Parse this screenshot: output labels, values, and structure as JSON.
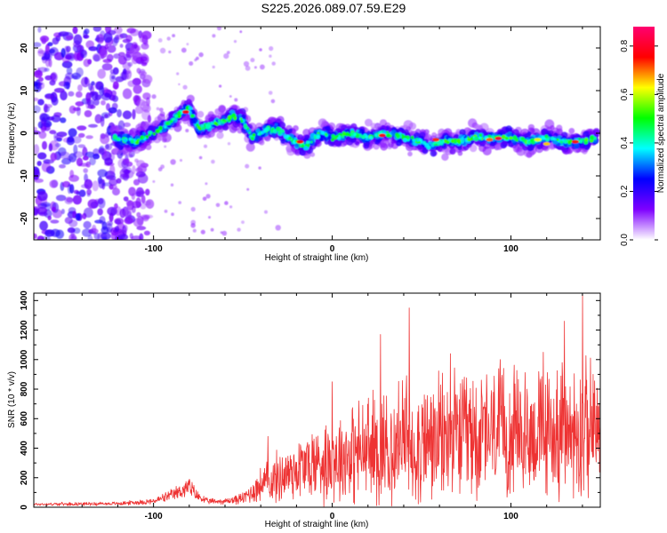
{
  "chart_data": [
    {
      "type": "heatmap",
      "title": "S225.2026.089.07.59.E29",
      "xlabel": "Height of straight line (km)",
      "ylabel": "Frequency (Hz)",
      "xlim": [
        -167,
        150
      ],
      "ylim": [
        -25,
        25
      ],
      "xticks": [
        -100,
        0,
        100
      ],
      "xtick_labels": [
        "-100",
        "0",
        "100"
      ],
      "yticks": [
        -20,
        -10,
        0,
        10,
        20
      ],
      "ytick_labels": [
        "-20",
        "-10",
        "0",
        "10",
        "20"
      ],
      "ridge": {
        "x": [
          -122,
          -110,
          -100,
          -92,
          -84,
          -80,
          -75,
          -68,
          -60,
          -55,
          -50,
          -45,
          -40,
          -36,
          -30,
          -25,
          -20,
          -15,
          -10,
          -5,
          0,
          10,
          20,
          30,
          40,
          50,
          55,
          60,
          70,
          80,
          90,
          100,
          110,
          120,
          130,
          140,
          148
        ],
        "y": [
          -1,
          -2,
          0,
          2,
          5,
          6,
          1,
          2,
          3,
          4,
          3,
          -1,
          0,
          1,
          1,
          -1,
          -2,
          -3,
          -1,
          0,
          -1,
          0,
          -1,
          0,
          -1,
          -2,
          -3,
          -2,
          -2,
          -1,
          -1,
          -1,
          -2,
          -1,
          -2,
          -2,
          -1
        ]
      },
      "noise_region_x": [
        -167,
        -102
      ],
      "colorbar": {
        "label": "Normalized spectral amplitude",
        "range": [
          0,
          0.88
        ],
        "ticks": [
          0.0,
          0.2,
          0.4,
          0.6,
          0.8
        ],
        "tick_labels": [
          "0.0",
          "0.2",
          "0.4",
          "0.6",
          "0.8"
        ],
        "colors": [
          "#ffffff",
          "#7e00ff",
          "#0000ff",
          "#00ffff",
          "#00ff00",
          "#ffff00",
          "#ff0000",
          "#ff0070"
        ]
      }
    },
    {
      "type": "line",
      "xlabel": "Height of straight line (km)",
      "ylabel": "SNR (10 * v/v)",
      "xlim": [
        -167,
        150
      ],
      "ylim": [
        0,
        1450
      ],
      "xticks": [
        -100,
        0,
        100
      ],
      "xtick_labels": [
        "-100",
        "0",
        "100"
      ],
      "yticks": [
        0,
        200,
        400,
        600,
        800,
        1000,
        1200,
        1400
      ],
      "ytick_labels": [
        "0",
        "200",
        "400",
        "600",
        "800",
        "1000",
        "1200",
        "1400"
      ],
      "color": "#ee3333",
      "envelope": {
        "x": [
          -167,
          -120,
          -100,
          -90,
          -83,
          -80,
          -76,
          -70,
          -60,
          -50,
          -40,
          -30,
          -20,
          -10,
          0,
          10,
          20,
          30,
          40,
          50,
          60,
          70,
          80,
          90,
          100,
          110,
          120,
          130,
          140,
          150
        ],
        "baseline": [
          20,
          25,
          40,
          80,
          120,
          140,
          80,
          40,
          40,
          60,
          150,
          200,
          260,
          300,
          330,
          360,
          380,
          420,
          440,
          430,
          450,
          470,
          480,
          490,
          500,
          500,
          500,
          510,
          520,
          520
        ],
        "amplitude": [
          10,
          12,
          20,
          40,
          60,
          70,
          40,
          20,
          20,
          40,
          120,
          180,
          220,
          260,
          300,
          330,
          380,
          420,
          450,
          430,
          420,
          430,
          440,
          440,
          420,
          420,
          430,
          460,
          480,
          400
        ]
      },
      "peaks": [
        {
          "x": -80,
          "y": 190
        },
        {
          "x": -36,
          "y": 480
        },
        {
          "x": 0,
          "y": 850
        },
        {
          "x": 27,
          "y": 1170
        },
        {
          "x": 43,
          "y": 1350
        },
        {
          "x": 66,
          "y": 1040
        },
        {
          "x": 94,
          "y": 1000
        },
        {
          "x": 118,
          "y": 1050
        },
        {
          "x": 130,
          "y": 1260
        },
        {
          "x": 140,
          "y": 1440
        },
        {
          "x": 146,
          "y": 900
        }
      ]
    }
  ]
}
